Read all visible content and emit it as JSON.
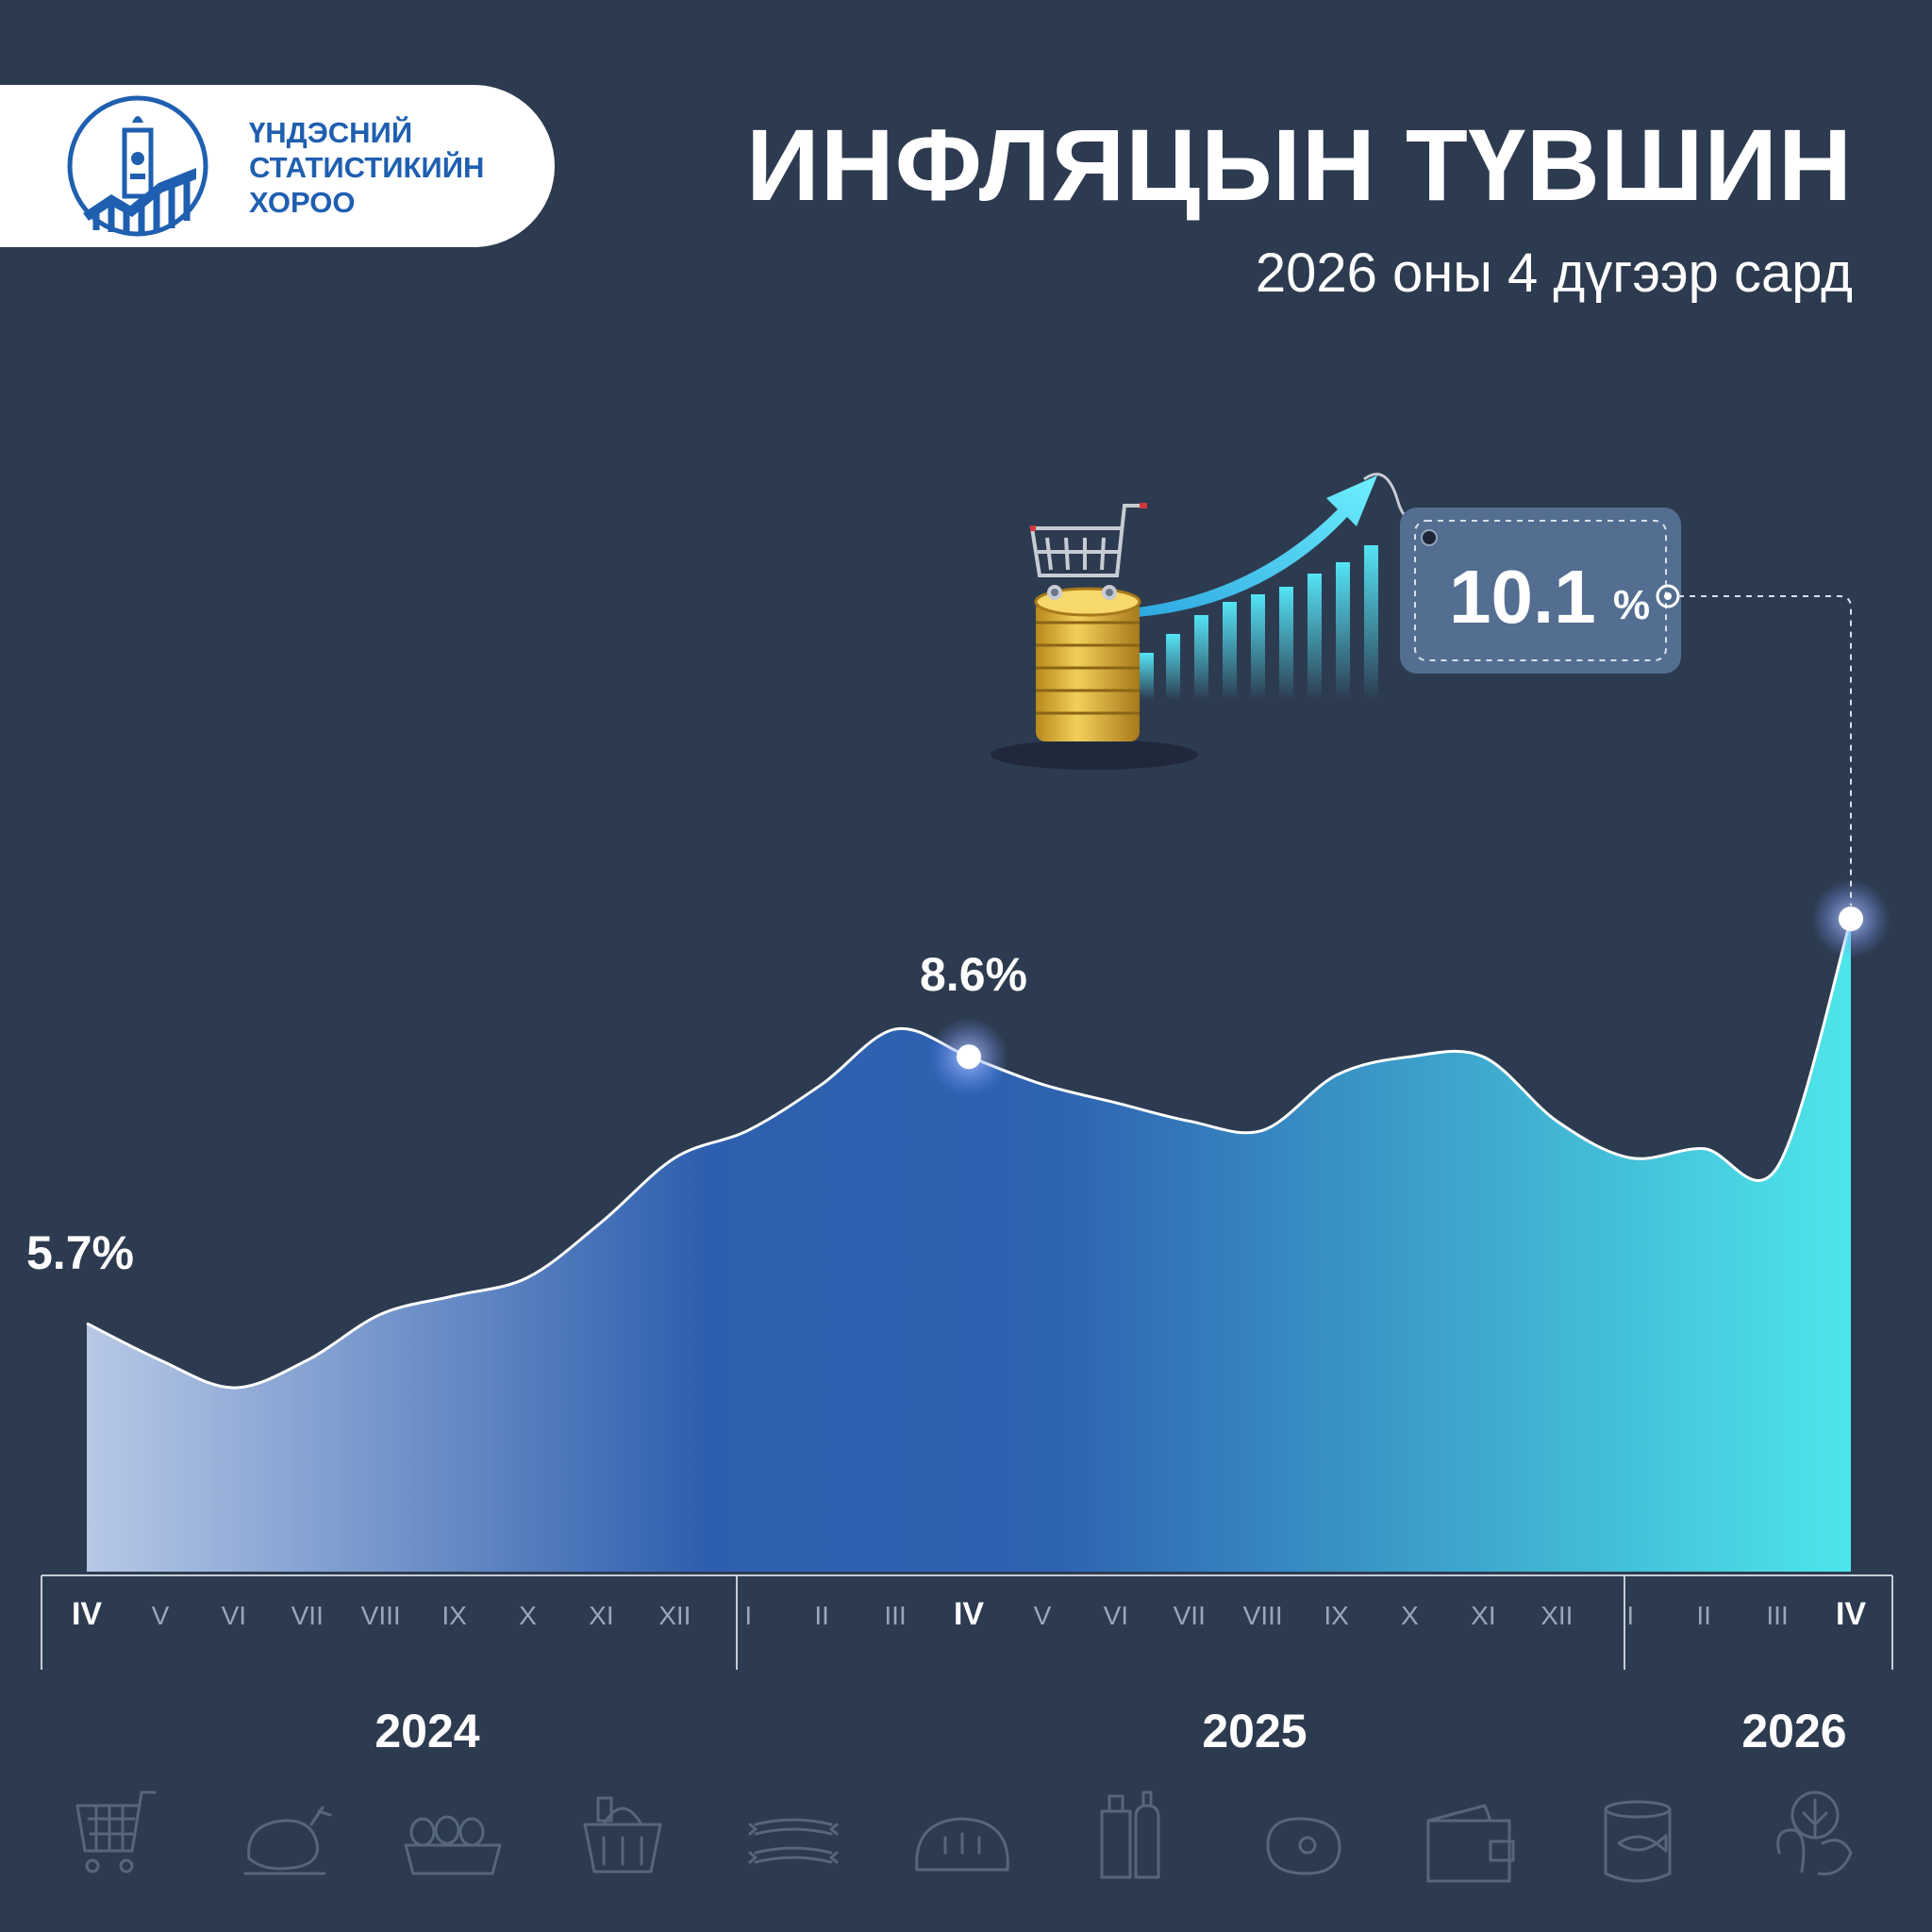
{
  "logo": {
    "lines": [
      "ҮНДЭСНИЙ",
      "СТАТИСТИКИЙН",
      "ХОРОО"
    ]
  },
  "header": {
    "title": "ИНФЛЯЦЫН ТҮВШИН",
    "subtitle": "2026 оны 4 дүгээр сард"
  },
  "colors": {
    "background": "#2d3b50",
    "area_start": "#b7c8e6",
    "area_mid": "#2e5fae",
    "area_end": "#4de6ea",
    "line": "#ffffff",
    "logo_blue": "#1f5fb0",
    "callout_bg": "#536e91"
  },
  "callout": {
    "value": "10.1",
    "unit": "%"
  },
  "decor_icons": [
    "shopping-cart-icon",
    "coin-stack-icon",
    "growth-bars-icon",
    "rising-arrow-icon",
    "price-tag-icon"
  ],
  "footer_icons": [
    "cart-icon",
    "chicken-icon",
    "eggs-icon",
    "grocery-basket-icon",
    "sausage-icon",
    "bread-icon",
    "bottles-icon",
    "meat-icon",
    "wallet-icon",
    "canned-fish-icon",
    "vegetables-icon"
  ],
  "chart_data": {
    "type": "area",
    "title": "ИНФЛЯЦЫН ТҮВШИН",
    "subtitle": "2026 оны 4 дүгээр сард",
    "unit": "%",
    "x": [
      "IV",
      "V",
      "VI",
      "VII",
      "VIII",
      "IX",
      "X",
      "XI",
      "XII",
      "I",
      "II",
      "III",
      "IV",
      "V",
      "VI",
      "VII",
      "VIII",
      "IX",
      "X",
      "XI",
      "XII",
      "I",
      "II",
      "III",
      "IV"
    ],
    "years": [
      {
        "label": "2024",
        "months": [
          "IV",
          "V",
          "VI",
          "VII",
          "VIII",
          "IX",
          "X",
          "XI",
          "XII"
        ]
      },
      {
        "label": "2025",
        "months": [
          "I",
          "II",
          "III",
          "IV",
          "V",
          "VI",
          "VII",
          "VIII",
          "IX",
          "X",
          "XI",
          "XII"
        ]
      },
      {
        "label": "2026",
        "months": [
          "I",
          "II",
          "III",
          "IV"
        ]
      }
    ],
    "values": [
      5.7,
      5.3,
      5.0,
      5.3,
      5.8,
      6.0,
      6.2,
      6.8,
      7.5,
      7.8,
      8.3,
      8.9,
      8.6,
      8.3,
      8.1,
      7.9,
      7.8,
      8.4,
      8.6,
      8.6,
      7.9,
      7.5,
      7.6,
      7.4,
      10.1
    ],
    "labeled_points": [
      {
        "index": 0,
        "label": "5.7%"
      },
      {
        "index": 12,
        "label": "8.6%"
      },
      {
        "index": 24,
        "label": "10.1%"
      }
    ],
    "highlighted_months": [
      0,
      12,
      24
    ],
    "grid": false,
    "legend": "none"
  }
}
